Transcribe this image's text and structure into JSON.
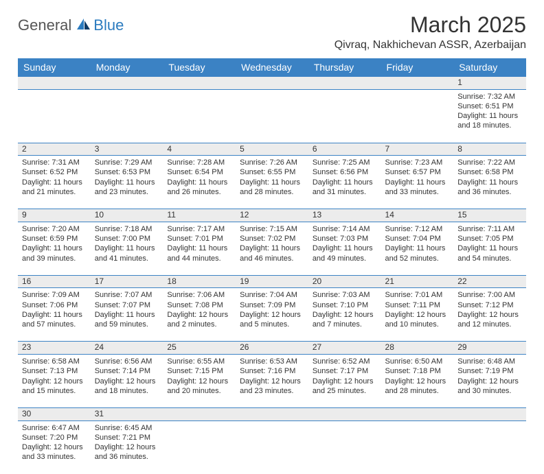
{
  "brand": {
    "general": "General",
    "blue": "Blue"
  },
  "title": "March 2025",
  "location": "Qivraq, Nakhichevan ASSR, Azerbaijan",
  "columns": [
    "Sunday",
    "Monday",
    "Tuesday",
    "Wednesday",
    "Thursday",
    "Friday",
    "Saturday"
  ],
  "styling": {
    "header_bg": "#3b82c4",
    "header_text": "#ffffff",
    "daynum_bg": "#ececec",
    "rule_color": "#3b82c4",
    "body_text": "#333333",
    "page_bg": "#ffffff",
    "logo_gray": "#555555",
    "logo_blue": "#2b7bbf",
    "title_fontsize": 32,
    "location_fontsize": 16,
    "th_fontsize": 14,
    "cell_fontsize": 11,
    "daynum_fontsize": 12
  },
  "weeks": [
    [
      null,
      null,
      null,
      null,
      null,
      null,
      {
        "d": "1",
        "sr": "Sunrise: 7:32 AM",
        "ss": "Sunset: 6:51 PM",
        "dl1": "Daylight: 11 hours",
        "dl2": "and 18 minutes."
      }
    ],
    [
      {
        "d": "2",
        "sr": "Sunrise: 7:31 AM",
        "ss": "Sunset: 6:52 PM",
        "dl1": "Daylight: 11 hours",
        "dl2": "and 21 minutes."
      },
      {
        "d": "3",
        "sr": "Sunrise: 7:29 AM",
        "ss": "Sunset: 6:53 PM",
        "dl1": "Daylight: 11 hours",
        "dl2": "and 23 minutes."
      },
      {
        "d": "4",
        "sr": "Sunrise: 7:28 AM",
        "ss": "Sunset: 6:54 PM",
        "dl1": "Daylight: 11 hours",
        "dl2": "and 26 minutes."
      },
      {
        "d": "5",
        "sr": "Sunrise: 7:26 AM",
        "ss": "Sunset: 6:55 PM",
        "dl1": "Daylight: 11 hours",
        "dl2": "and 28 minutes."
      },
      {
        "d": "6",
        "sr": "Sunrise: 7:25 AM",
        "ss": "Sunset: 6:56 PM",
        "dl1": "Daylight: 11 hours",
        "dl2": "and 31 minutes."
      },
      {
        "d": "7",
        "sr": "Sunrise: 7:23 AM",
        "ss": "Sunset: 6:57 PM",
        "dl1": "Daylight: 11 hours",
        "dl2": "and 33 minutes."
      },
      {
        "d": "8",
        "sr": "Sunrise: 7:22 AM",
        "ss": "Sunset: 6:58 PM",
        "dl1": "Daylight: 11 hours",
        "dl2": "and 36 minutes."
      }
    ],
    [
      {
        "d": "9",
        "sr": "Sunrise: 7:20 AM",
        "ss": "Sunset: 6:59 PM",
        "dl1": "Daylight: 11 hours",
        "dl2": "and 39 minutes."
      },
      {
        "d": "10",
        "sr": "Sunrise: 7:18 AM",
        "ss": "Sunset: 7:00 PM",
        "dl1": "Daylight: 11 hours",
        "dl2": "and 41 minutes."
      },
      {
        "d": "11",
        "sr": "Sunrise: 7:17 AM",
        "ss": "Sunset: 7:01 PM",
        "dl1": "Daylight: 11 hours",
        "dl2": "and 44 minutes."
      },
      {
        "d": "12",
        "sr": "Sunrise: 7:15 AM",
        "ss": "Sunset: 7:02 PM",
        "dl1": "Daylight: 11 hours",
        "dl2": "and 46 minutes."
      },
      {
        "d": "13",
        "sr": "Sunrise: 7:14 AM",
        "ss": "Sunset: 7:03 PM",
        "dl1": "Daylight: 11 hours",
        "dl2": "and 49 minutes."
      },
      {
        "d": "14",
        "sr": "Sunrise: 7:12 AM",
        "ss": "Sunset: 7:04 PM",
        "dl1": "Daylight: 11 hours",
        "dl2": "and 52 minutes."
      },
      {
        "d": "15",
        "sr": "Sunrise: 7:11 AM",
        "ss": "Sunset: 7:05 PM",
        "dl1": "Daylight: 11 hours",
        "dl2": "and 54 minutes."
      }
    ],
    [
      {
        "d": "16",
        "sr": "Sunrise: 7:09 AM",
        "ss": "Sunset: 7:06 PM",
        "dl1": "Daylight: 11 hours",
        "dl2": "and 57 minutes."
      },
      {
        "d": "17",
        "sr": "Sunrise: 7:07 AM",
        "ss": "Sunset: 7:07 PM",
        "dl1": "Daylight: 11 hours",
        "dl2": "and 59 minutes."
      },
      {
        "d": "18",
        "sr": "Sunrise: 7:06 AM",
        "ss": "Sunset: 7:08 PM",
        "dl1": "Daylight: 12 hours",
        "dl2": "and 2 minutes."
      },
      {
        "d": "19",
        "sr": "Sunrise: 7:04 AM",
        "ss": "Sunset: 7:09 PM",
        "dl1": "Daylight: 12 hours",
        "dl2": "and 5 minutes."
      },
      {
        "d": "20",
        "sr": "Sunrise: 7:03 AM",
        "ss": "Sunset: 7:10 PM",
        "dl1": "Daylight: 12 hours",
        "dl2": "and 7 minutes."
      },
      {
        "d": "21",
        "sr": "Sunrise: 7:01 AM",
        "ss": "Sunset: 7:11 PM",
        "dl1": "Daylight: 12 hours",
        "dl2": "and 10 minutes."
      },
      {
        "d": "22",
        "sr": "Sunrise: 7:00 AM",
        "ss": "Sunset: 7:12 PM",
        "dl1": "Daylight: 12 hours",
        "dl2": "and 12 minutes."
      }
    ],
    [
      {
        "d": "23",
        "sr": "Sunrise: 6:58 AM",
        "ss": "Sunset: 7:13 PM",
        "dl1": "Daylight: 12 hours",
        "dl2": "and 15 minutes."
      },
      {
        "d": "24",
        "sr": "Sunrise: 6:56 AM",
        "ss": "Sunset: 7:14 PM",
        "dl1": "Daylight: 12 hours",
        "dl2": "and 18 minutes."
      },
      {
        "d": "25",
        "sr": "Sunrise: 6:55 AM",
        "ss": "Sunset: 7:15 PM",
        "dl1": "Daylight: 12 hours",
        "dl2": "and 20 minutes."
      },
      {
        "d": "26",
        "sr": "Sunrise: 6:53 AM",
        "ss": "Sunset: 7:16 PM",
        "dl1": "Daylight: 12 hours",
        "dl2": "and 23 minutes."
      },
      {
        "d": "27",
        "sr": "Sunrise: 6:52 AM",
        "ss": "Sunset: 7:17 PM",
        "dl1": "Daylight: 12 hours",
        "dl2": "and 25 minutes."
      },
      {
        "d": "28",
        "sr": "Sunrise: 6:50 AM",
        "ss": "Sunset: 7:18 PM",
        "dl1": "Daylight: 12 hours",
        "dl2": "and 28 minutes."
      },
      {
        "d": "29",
        "sr": "Sunrise: 6:48 AM",
        "ss": "Sunset: 7:19 PM",
        "dl1": "Daylight: 12 hours",
        "dl2": "and 30 minutes."
      }
    ],
    [
      {
        "d": "30",
        "sr": "Sunrise: 6:47 AM",
        "ss": "Sunset: 7:20 PM",
        "dl1": "Daylight: 12 hours",
        "dl2": "and 33 minutes."
      },
      {
        "d": "31",
        "sr": "Sunrise: 6:45 AM",
        "ss": "Sunset: 7:21 PM",
        "dl1": "Daylight: 12 hours",
        "dl2": "and 36 minutes."
      },
      null,
      null,
      null,
      null,
      null
    ]
  ]
}
